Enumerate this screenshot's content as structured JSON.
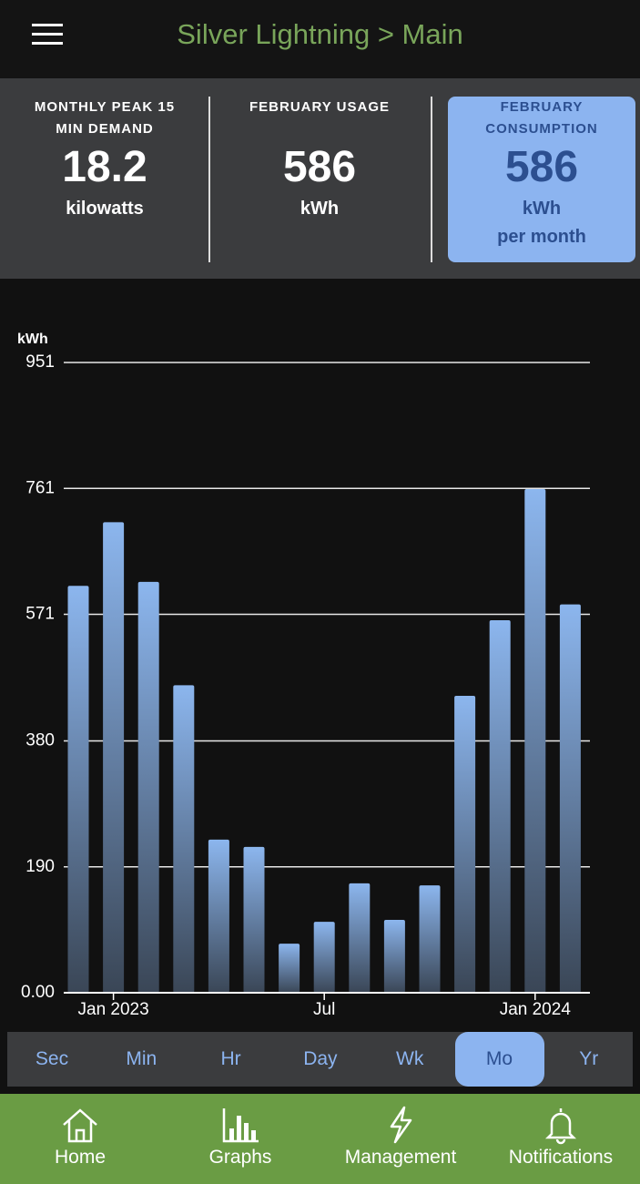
{
  "header": {
    "title": "Silver Lightning > Main"
  },
  "stats": [
    {
      "label": "MONTHLY PEAK 15 MIN DEMAND",
      "value": 18.2,
      "unit": "kilowatts"
    },
    {
      "label": "FEBRUARY USAGE",
      "value": 586,
      "unit": "kWh"
    },
    {
      "label": "FEBRUARY CONSUMPTION",
      "value": 586,
      "unit": "kWh",
      "period": "per month"
    }
  ],
  "chart_data": {
    "type": "bar",
    "y_label": "kWh",
    "categories": [
      null,
      "Jan 2023",
      null,
      null,
      null,
      null,
      null,
      "Jul",
      null,
      null,
      null,
      null,
      null,
      "Jan 2024",
      null
    ],
    "values": [
      614,
      710,
      620,
      464,
      231,
      220,
      74,
      107,
      165,
      110,
      162,
      448,
      562,
      760,
      586
    ],
    "color": "#8cb6ee",
    "ylim": [
      0,
      951
    ],
    "yticks": [
      {
        "value": 0,
        "label": "0.00"
      },
      190,
      380,
      571,
      761,
      951
    ],
    "grid": true
  },
  "tabs": {
    "items": [
      "Sec",
      "Min",
      "Hr",
      "Day",
      "Wk",
      "Mo",
      "Yr"
    ],
    "selected": "Mo"
  },
  "nav": [
    "Home",
    "Graphs",
    "Management",
    "Notifications"
  ]
}
